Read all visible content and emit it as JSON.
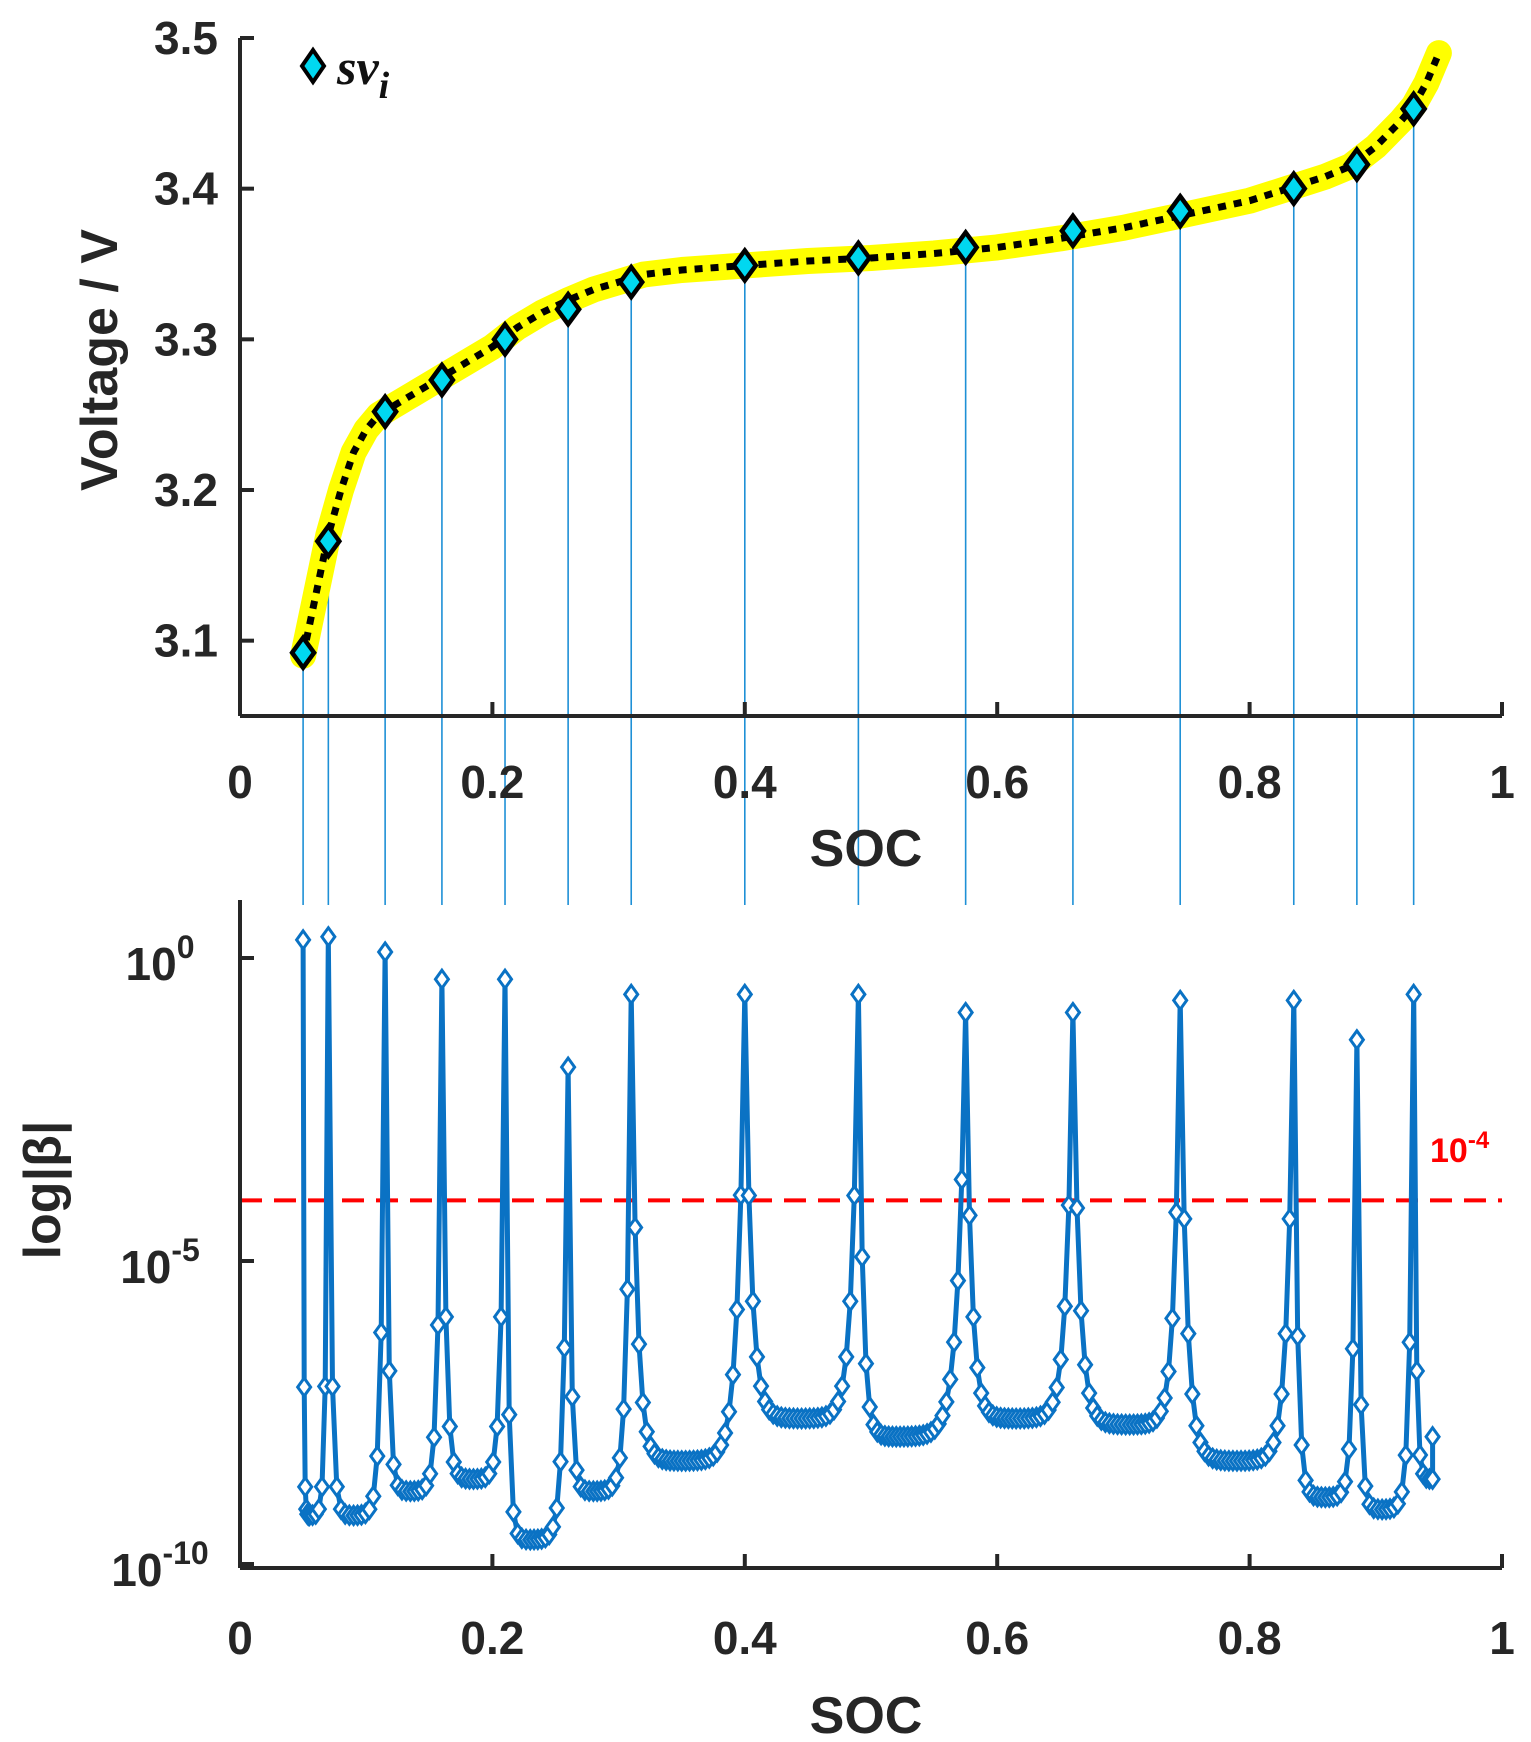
{
  "chart_data": [
    {
      "id": "voltage",
      "type": "line",
      "xlabel": "SOC",
      "ylabel": "Voltage / V",
      "xlim": [
        0,
        1
      ],
      "ylim": [
        3.05,
        3.5
      ],
      "xticks": [
        0,
        0.2,
        0.4,
        0.6,
        0.8,
        1
      ],
      "xtick_labels": [
        "0",
        "0.2",
        "0.4",
        "0.6",
        "0.8",
        "1"
      ],
      "yticks": [
        3.1,
        3.2,
        3.3,
        3.4,
        3.5
      ],
      "ytick_labels": [
        "3.1",
        "3.2",
        "3.3",
        "3.4",
        "3.5"
      ],
      "legend": {
        "label_main": "sv",
        "label_sub": "i",
        "placement": "top-left"
      },
      "colors": {
        "curve_highlight": "#ffff00",
        "curve": "#000000",
        "marker_fill": "#00d8f0",
        "marker_edge": "#000000",
        "guide": "#1e90d6",
        "axis": "#262626"
      },
      "curve": {
        "x": [
          0.05,
          0.06,
          0.07,
          0.08,
          0.09,
          0.1,
          0.11,
          0.12,
          0.14,
          0.16,
          0.18,
          0.2,
          0.22,
          0.24,
          0.26,
          0.28,
          0.3,
          0.32,
          0.35,
          0.4,
          0.45,
          0.5,
          0.55,
          0.6,
          0.65,
          0.7,
          0.75,
          0.8,
          0.83,
          0.86,
          0.88,
          0.9,
          0.92,
          0.93,
          0.94,
          0.95
        ],
        "y": [
          3.09,
          3.13,
          3.17,
          3.2,
          3.225,
          3.24,
          3.25,
          3.255,
          3.265,
          3.275,
          3.285,
          3.295,
          3.308,
          3.318,
          3.326,
          3.333,
          3.338,
          3.343,
          3.346,
          3.349,
          3.352,
          3.354,
          3.357,
          3.361,
          3.367,
          3.374,
          3.383,
          3.392,
          3.4,
          3.408,
          3.415,
          3.428,
          3.445,
          3.455,
          3.47,
          3.49
        ]
      },
      "points": {
        "x": [
          0.05,
          0.07,
          0.115,
          0.16,
          0.21,
          0.26,
          0.31,
          0.4,
          0.49,
          0.575,
          0.66,
          0.745,
          0.835,
          0.885,
          0.93
        ],
        "y": [
          3.092,
          3.166,
          3.252,
          3.273,
          3.3,
          3.32,
          3.338,
          3.349,
          3.354,
          3.361,
          3.372,
          3.385,
          3.4,
          3.416,
          3.453
        ]
      }
    },
    {
      "id": "beta",
      "type": "line",
      "scale_y": "log",
      "xlabel": "SOC",
      "ylabel": "log|β|",
      "xlim": [
        0,
        1
      ],
      "ylim_exponent": [
        -10,
        1
      ],
      "xticks": [
        0,
        0.2,
        0.4,
        0.6,
        0.8,
        1
      ],
      "xtick_labels": [
        "0",
        "0.2",
        "0.4",
        "0.6",
        "0.8",
        "1"
      ],
      "yticks_exponent": [
        0,
        -5,
        -10
      ],
      "ytick_labels": [
        {
          "base": "10",
          "exp": "0"
        },
        {
          "base": "10",
          "exp": "-5"
        },
        {
          "base": "10",
          "exp": "-10"
        }
      ],
      "threshold": {
        "exponent": -4,
        "base": "10",
        "exp": "-4",
        "color": "#ff0000",
        "style": "dashed"
      },
      "colors": {
        "series": "#0a72c4",
        "marker_edge": "#0a72c4",
        "marker_fill": "#ffffff",
        "axis": "#262626"
      },
      "spike_x": [
        0.05,
        0.07,
        0.115,
        0.16,
        0.21,
        0.26,
        0.31,
        0.4,
        0.49,
        0.575,
        0.66,
        0.745,
        0.835,
        0.885,
        0.93
      ],
      "spike_peak_exponent": [
        0.3,
        0.35,
        0.1,
        -0.35,
        -0.35,
        -1.8,
        -0.6,
        -0.6,
        -0.6,
        -0.9,
        -0.9,
        -0.7,
        -0.7,
        -1.35,
        -0.6
      ],
      "valley_x": [
        0.055,
        0.09,
        0.135,
        0.185,
        0.23,
        0.28,
        0.35,
        0.445,
        0.52,
        0.615,
        0.705,
        0.79,
        0.86,
        0.905,
        0.945
      ],
      "valley_min_exponent": [
        -9.2,
        -9.2,
        -8.8,
        -8.6,
        -9.6,
        -8.8,
        -8.3,
        -7.6,
        -7.9,
        -7.6,
        -7.7,
        -8.3,
        -8.9,
        -9.1,
        -8.6
      ]
    }
  ]
}
